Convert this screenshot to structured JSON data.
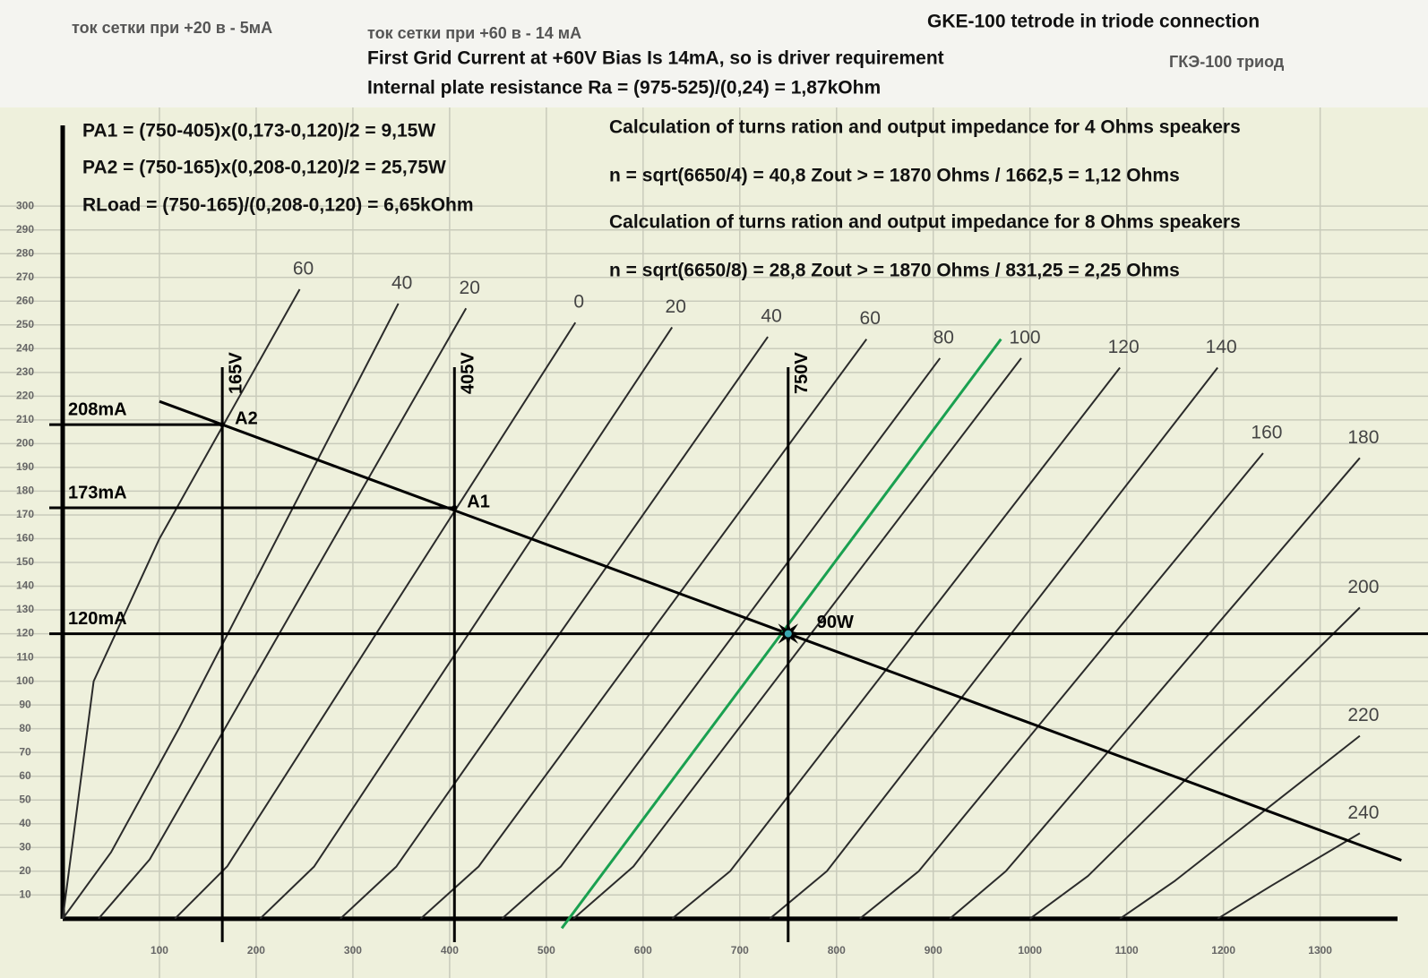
{
  "chart_data": {
    "type": "line",
    "annotations": {
      "grid_note_1": "ток сетки при +20 в - 5мА",
      "grid_note_2": "ток сетки при +60 в - 14 мА",
      "title": "GKE-100 tetrode in triode connection",
      "subtitle_ru": "ГКЭ-100   триод",
      "driver": "First Grid Current at +60V Bias Is 14mA, so is driver requirement",
      "ra": "Internal plate resistance Ra = (975-525)/(0,24) = 1,87kOhm",
      "pa1": "PA1 = (750-405)x(0,173-0,120)/2 = 9,15W",
      "pa2": "PA2 = (750-165)x(0,208-0,120)/2 = 25,75W",
      "rload": "RLoad = (750-165)/(0,208-0,120) = 6,65kOhm",
      "calc4": "Calculation of turns ration and output impedance for 4 Ohms speakers",
      "n4": "n = sqrt(6650/4) = 40,8     Zout > = 1870 Ohms / 1662,5 = 1,12 Ohms",
      "calc8": "Calculation of turns ration and output impedance for 8 Ohms speakers",
      "n8": "n = sqrt(6650/8) = 28,8     Zout > = 1870 Ohms / 831,25 = 2,25 Ohms"
    },
    "xlim": [
      0,
      1380
    ],
    "ylim": [
      -11,
      334
    ],
    "xticks": [
      100,
      200,
      300,
      400,
      500,
      600,
      700,
      800,
      900,
      1000,
      1100,
      1200,
      1300
    ],
    "yticks": [
      10,
      20,
      30,
      40,
      50,
      60,
      70,
      80,
      90,
      100,
      110,
      120,
      130,
      140,
      150,
      160,
      170,
      180,
      190,
      200,
      210,
      220,
      230,
      240,
      250,
      260,
      270,
      280,
      290,
      300
    ],
    "grid": true,
    "series": [
      {
        "name": "60",
        "color": "#2b2b2b",
        "x": [
          0,
          32,
          100,
          245
        ],
        "values": [
          0,
          100,
          160,
          265
        ]
      },
      {
        "name": "40",
        "color": "#2b2b2b",
        "x": [
          0,
          50,
          120,
          347
        ],
        "values": [
          0,
          28,
          80,
          259
        ]
      },
      {
        "name": "20",
        "color": "#2b2b2b",
        "x": [
          37,
          90,
          417
        ],
        "values": [
          0,
          25,
          257
        ]
      },
      {
        "name": "0",
        "color": "#2b2b2b",
        "x": [
          116,
          170,
          530
        ],
        "values": [
          0,
          22,
          251
        ]
      },
      {
        "name": "20",
        "color": "#2b2b2b",
        "x": [
          204,
          260,
          630
        ],
        "values": [
          0,
          22,
          249
        ]
      },
      {
        "name": "40",
        "color": "#2b2b2b",
        "x": [
          287,
          345,
          729
        ],
        "values": [
          0,
          22,
          245
        ]
      },
      {
        "name": "60",
        "color": "#2b2b2b",
        "x": [
          370,
          430,
          831
        ],
        "values": [
          0,
          22,
          244
        ]
      },
      {
        "name": "80",
        "color": "#2b2b2b",
        "x": [
          454,
          515,
          907
        ],
        "values": [
          0,
          22,
          236
        ]
      },
      {
        "name": "100",
        "color": "#2b2b2b",
        "x": [
          528,
          590,
          991
        ],
        "values": [
          0,
          22,
          236
        ]
      },
      {
        "name": "120",
        "color": "#2b2b2b",
        "x": [
          630,
          690,
          1093
        ],
        "values": [
          0,
          20,
          232
        ]
      },
      {
        "name": "140",
        "color": "#2b2b2b",
        "x": [
          731,
          790,
          1194
        ],
        "values": [
          0,
          20,
          232
        ]
      },
      {
        "name": "160",
        "color": "#2b2b2b",
        "x": [
          824,
          885,
          1241
        ],
        "values": [
          0,
          20,
          196
        ]
      },
      {
        "name": "180",
        "color": "#2b2b2b",
        "x": [
          917,
          975,
          1341
        ],
        "values": [
          0,
          20,
          194
        ]
      },
      {
        "name": "200",
        "color": "#2b2b2b",
        "x": [
          1000,
          1060,
          1341
        ],
        "values": [
          0,
          18,
          131
        ]
      },
      {
        "name": "220",
        "color": "#2b2b2b",
        "x": [
          1093,
          1150,
          1341
        ],
        "values": [
          0,
          16,
          77
        ]
      },
      {
        "name": "240",
        "color": "#2b2b2b",
        "x": [
          1194,
          1250,
          1341
        ],
        "values": [
          0,
          14,
          36
        ]
      }
    ],
    "extra_lines": [
      {
        "color": "#000000",
        "x": [
          100,
          1384
        ],
        "values": [
          217.8,
          24.6
        ]
      },
      {
        "color": "#1aa050",
        "x": [
          516,
          970
        ],
        "values": [
          -4,
          244
        ]
      }
    ],
    "vlines": [
      {
        "label": "165V",
        "value": 165
      },
      {
        "label": "405V",
        "value": 405
      },
      {
        "label": "750V",
        "value": 750
      }
    ],
    "hlines": [
      {
        "label": "208mA",
        "value": 208
      },
      {
        "label": "173mA",
        "value": 173
      },
      {
        "label": "120mA",
        "value": 120
      }
    ],
    "points": [
      {
        "label": "A2",
        "x": 165,
        "y": 208
      },
      {
        "label": "A1",
        "x": 405,
        "y": 173
      },
      {
        "label": "90W",
        "x": 750,
        "y": 120
      }
    ]
  }
}
